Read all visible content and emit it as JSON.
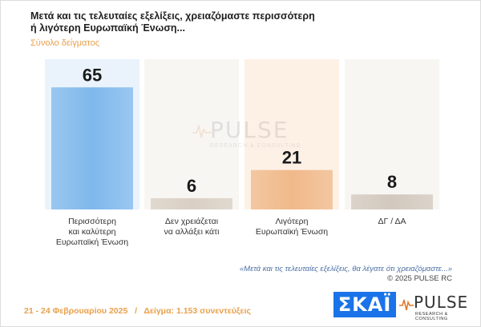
{
  "header": {
    "title": "Μετά και τις τελευταίες εξελίξεις, χρειαζόμαστε περισσότερη ή λιγότερη Ευρωπαϊκή Ένωση...",
    "subtitle": "Σύνολο δείγματος"
  },
  "chart_data": {
    "type": "bar",
    "categories": [
      [
        "Περισσότερη",
        "και καλύτερη",
        "Ευρωπαϊκή Ένωση"
      ],
      [
        "Δεν χρειάζεται",
        "να αλλάξει κάτι"
      ],
      [
        "Λιγότερη",
        "Ευρωπαϊκή Ένωση"
      ],
      [
        "ΔΓ / ΔΑ"
      ]
    ],
    "values": [
      65,
      6,
      21,
      8
    ],
    "ylim": [
      0,
      80
    ],
    "colors": [
      "#7fb8ec",
      "#d9cfc4",
      "#f0b98a",
      "#d2c8bd"
    ],
    "column_bg": [
      "#eaf3fc",
      "#f8f6f3",
      "#fdf1e6",
      "#f8f6f3"
    ]
  },
  "watermark": {
    "text": "PULSE",
    "sub": "RESEARCH & CONSULTING"
  },
  "note": "«Μετά και τις τελευταίες εξελίξεις, θα λέγατε ότι χρειαζόμαστε...»",
  "copyright": "©  2025  PULSE RC",
  "footer": {
    "dates": "21 - 24 Φεβρουαρίου 2025",
    "separator": "/",
    "sample": "Δείγμα:  1.153 συνεντεύξεις"
  },
  "logos": {
    "skai": "ΣΚΑΪ",
    "pulse": "PULSE",
    "pulse_sub": "RESEARCH & CONSULTING"
  }
}
